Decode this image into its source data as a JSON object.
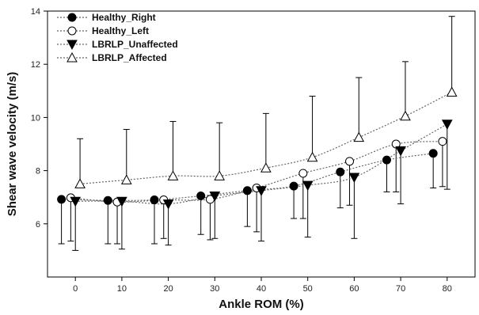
{
  "chart_data": {
    "type": "scatter",
    "title": "",
    "xlabel": "Ankle ROM (%)",
    "ylabel": "Shear wave velocity (m/s)",
    "xlim": [
      -6,
      86
    ],
    "ylim": [
      4,
      14
    ],
    "xticks": [
      0,
      10,
      20,
      30,
      40,
      50,
      60,
      70,
      80
    ],
    "yticks": [
      6,
      8,
      10,
      12,
      14
    ],
    "legend_position": "top-left",
    "error_bars": "one-sided (SD): downward for Healthy_Right, Healthy_Left and LBRLP_Unaffected; upward for LBRLP_Affected",
    "connector": "dotted line",
    "series": [
      {
        "name": "Healthy_Right",
        "marker": "filled-circle",
        "x": [
          -3,
          7,
          17,
          27,
          37,
          47,
          57,
          67,
          77
        ],
        "y": [
          6.92,
          6.88,
          6.9,
          7.05,
          7.25,
          7.42,
          7.95,
          8.4,
          8.65
        ],
        "err_low": [
          5.25,
          5.25,
          5.25,
          5.6,
          5.9,
          6.2,
          6.6,
          7.2,
          7.35
        ]
      },
      {
        "name": "Healthy_Left",
        "marker": "open-circle",
        "x": [
          -1,
          9,
          19,
          29,
          39,
          49,
          59,
          69,
          79
        ],
        "y": [
          6.98,
          6.82,
          6.9,
          6.92,
          7.35,
          7.9,
          8.35,
          9.0,
          9.1
        ],
        "err_low": [
          5.35,
          5.25,
          5.45,
          5.4,
          5.7,
          6.2,
          6.7,
          7.2,
          7.4
        ]
      },
      {
        "name": "LBRLP_Unaffected",
        "marker": "filled-triangle-down",
        "x": [
          0,
          10,
          20,
          30,
          40,
          50,
          60,
          70,
          80
        ],
        "y": [
          6.85,
          6.85,
          6.75,
          7.05,
          7.25,
          7.45,
          7.75,
          8.75,
          9.75
        ],
        "err_low": [
          5.0,
          5.05,
          5.2,
          5.45,
          5.35,
          5.5,
          5.45,
          6.75,
          7.3
        ]
      },
      {
        "name": "LBRLP_Affected",
        "marker": "open-triangle-up",
        "x": [
          1,
          11,
          21,
          31,
          41,
          51,
          61,
          71,
          81
        ],
        "y": [
          7.5,
          7.65,
          7.8,
          7.8,
          8.1,
          8.5,
          9.25,
          10.05,
          10.95
        ],
        "err_high": [
          9.2,
          9.55,
          9.85,
          9.8,
          10.15,
          10.8,
          11.5,
          12.1,
          13.8
        ]
      }
    ]
  },
  "colors": {
    "marker_stroke": "#000000",
    "marker_fill_filled": "#000000",
    "marker_fill_open": "#ffffff",
    "line": "#666666"
  }
}
